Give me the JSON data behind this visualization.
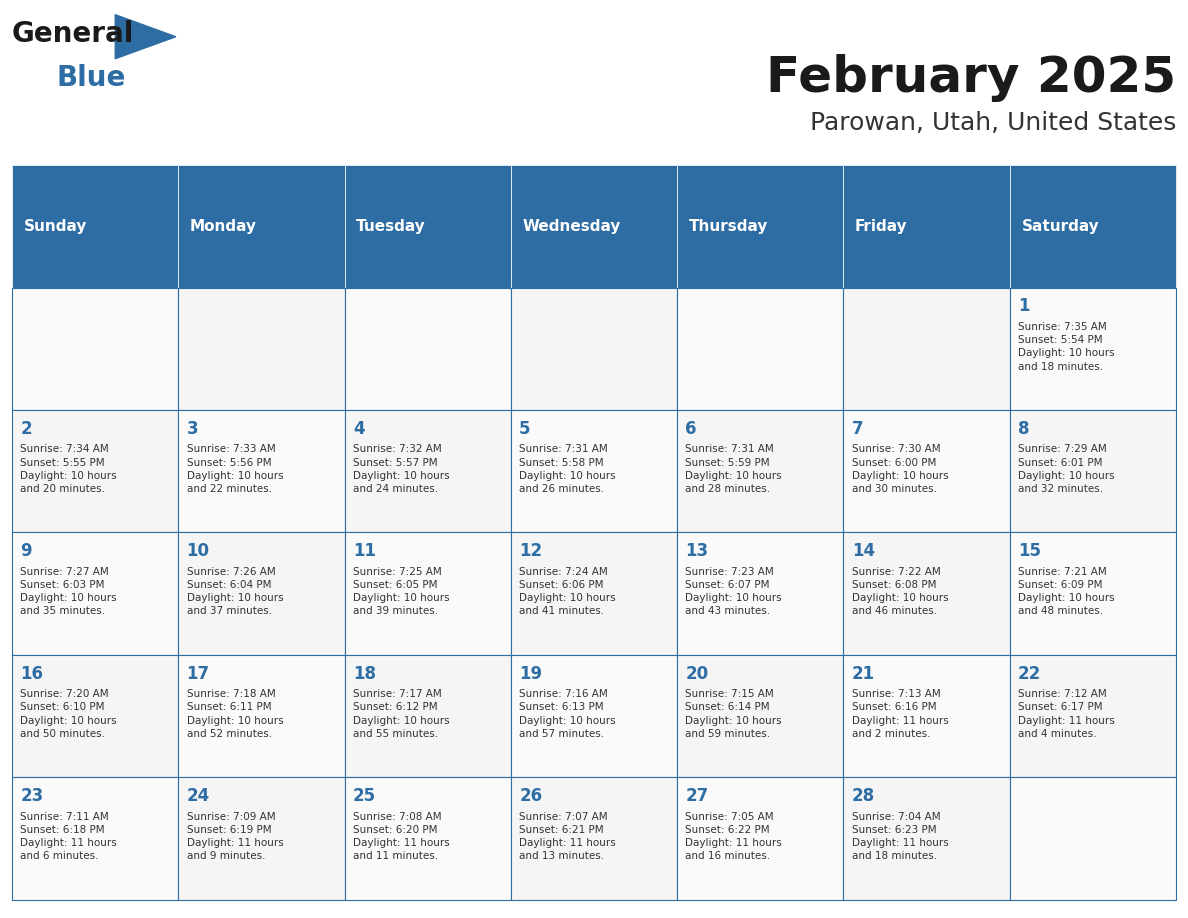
{
  "title": "February 2025",
  "subtitle": "Parowan, Utah, United States",
  "header_bg_color": "#2E6DA4",
  "header_text_color": "#FFFFFF",
  "cell_bg_color": "#F2F2F2",
  "cell_alt_bg_color": "#FFFFFF",
  "border_color": "#2E6DA4",
  "day_number_color": "#2E6DA4",
  "cell_text_color": "#333333",
  "days_of_week": [
    "Sunday",
    "Monday",
    "Tuesday",
    "Wednesday",
    "Thursday",
    "Friday",
    "Saturday"
  ],
  "weeks": [
    [
      {
        "day": "",
        "info": ""
      },
      {
        "day": "",
        "info": ""
      },
      {
        "day": "",
        "info": ""
      },
      {
        "day": "",
        "info": ""
      },
      {
        "day": "",
        "info": ""
      },
      {
        "day": "",
        "info": ""
      },
      {
        "day": "1",
        "info": "Sunrise: 7:35 AM\nSunset: 5:54 PM\nDaylight: 10 hours\nand 18 minutes."
      }
    ],
    [
      {
        "day": "2",
        "info": "Sunrise: 7:34 AM\nSunset: 5:55 PM\nDaylight: 10 hours\nand 20 minutes."
      },
      {
        "day": "3",
        "info": "Sunrise: 7:33 AM\nSunset: 5:56 PM\nDaylight: 10 hours\nand 22 minutes."
      },
      {
        "day": "4",
        "info": "Sunrise: 7:32 AM\nSunset: 5:57 PM\nDaylight: 10 hours\nand 24 minutes."
      },
      {
        "day": "5",
        "info": "Sunrise: 7:31 AM\nSunset: 5:58 PM\nDaylight: 10 hours\nand 26 minutes."
      },
      {
        "day": "6",
        "info": "Sunrise: 7:31 AM\nSunset: 5:59 PM\nDaylight: 10 hours\nand 28 minutes."
      },
      {
        "day": "7",
        "info": "Sunrise: 7:30 AM\nSunset: 6:00 PM\nDaylight: 10 hours\nand 30 minutes."
      },
      {
        "day": "8",
        "info": "Sunrise: 7:29 AM\nSunset: 6:01 PM\nDaylight: 10 hours\nand 32 minutes."
      }
    ],
    [
      {
        "day": "9",
        "info": "Sunrise: 7:27 AM\nSunset: 6:03 PM\nDaylight: 10 hours\nand 35 minutes."
      },
      {
        "day": "10",
        "info": "Sunrise: 7:26 AM\nSunset: 6:04 PM\nDaylight: 10 hours\nand 37 minutes."
      },
      {
        "day": "11",
        "info": "Sunrise: 7:25 AM\nSunset: 6:05 PM\nDaylight: 10 hours\nand 39 minutes."
      },
      {
        "day": "12",
        "info": "Sunrise: 7:24 AM\nSunset: 6:06 PM\nDaylight: 10 hours\nand 41 minutes."
      },
      {
        "day": "13",
        "info": "Sunrise: 7:23 AM\nSunset: 6:07 PM\nDaylight: 10 hours\nand 43 minutes."
      },
      {
        "day": "14",
        "info": "Sunrise: 7:22 AM\nSunset: 6:08 PM\nDaylight: 10 hours\nand 46 minutes."
      },
      {
        "day": "15",
        "info": "Sunrise: 7:21 AM\nSunset: 6:09 PM\nDaylight: 10 hours\nand 48 minutes."
      }
    ],
    [
      {
        "day": "16",
        "info": "Sunrise: 7:20 AM\nSunset: 6:10 PM\nDaylight: 10 hours\nand 50 minutes."
      },
      {
        "day": "17",
        "info": "Sunrise: 7:18 AM\nSunset: 6:11 PM\nDaylight: 10 hours\nand 52 minutes."
      },
      {
        "day": "18",
        "info": "Sunrise: 7:17 AM\nSunset: 6:12 PM\nDaylight: 10 hours\nand 55 minutes."
      },
      {
        "day": "19",
        "info": "Sunrise: 7:16 AM\nSunset: 6:13 PM\nDaylight: 10 hours\nand 57 minutes."
      },
      {
        "day": "20",
        "info": "Sunrise: 7:15 AM\nSunset: 6:14 PM\nDaylight: 10 hours\nand 59 minutes."
      },
      {
        "day": "21",
        "info": "Sunrise: 7:13 AM\nSunset: 6:16 PM\nDaylight: 11 hours\nand 2 minutes."
      },
      {
        "day": "22",
        "info": "Sunrise: 7:12 AM\nSunset: 6:17 PM\nDaylight: 11 hours\nand 4 minutes."
      }
    ],
    [
      {
        "day": "23",
        "info": "Sunrise: 7:11 AM\nSunset: 6:18 PM\nDaylight: 11 hours\nand 6 minutes."
      },
      {
        "day": "24",
        "info": "Sunrise: 7:09 AM\nSunset: 6:19 PM\nDaylight: 11 hours\nand 9 minutes."
      },
      {
        "day": "25",
        "info": "Sunrise: 7:08 AM\nSunset: 6:20 PM\nDaylight: 11 hours\nand 11 minutes."
      },
      {
        "day": "26",
        "info": "Sunrise: 7:07 AM\nSunset: 6:21 PM\nDaylight: 11 hours\nand 13 minutes."
      },
      {
        "day": "27",
        "info": "Sunrise: 7:05 AM\nSunset: 6:22 PM\nDaylight: 11 hours\nand 16 minutes."
      },
      {
        "day": "28",
        "info": "Sunrise: 7:04 AM\nSunset: 6:23 PM\nDaylight: 11 hours\nand 18 minutes."
      },
      {
        "day": "",
        "info": ""
      }
    ]
  ],
  "logo_general_color": "#1a1a1a",
  "logo_blue_color": "#2E6DA4",
  "figsize": [
    11.88,
    9.18
  ],
  "dpi": 100
}
